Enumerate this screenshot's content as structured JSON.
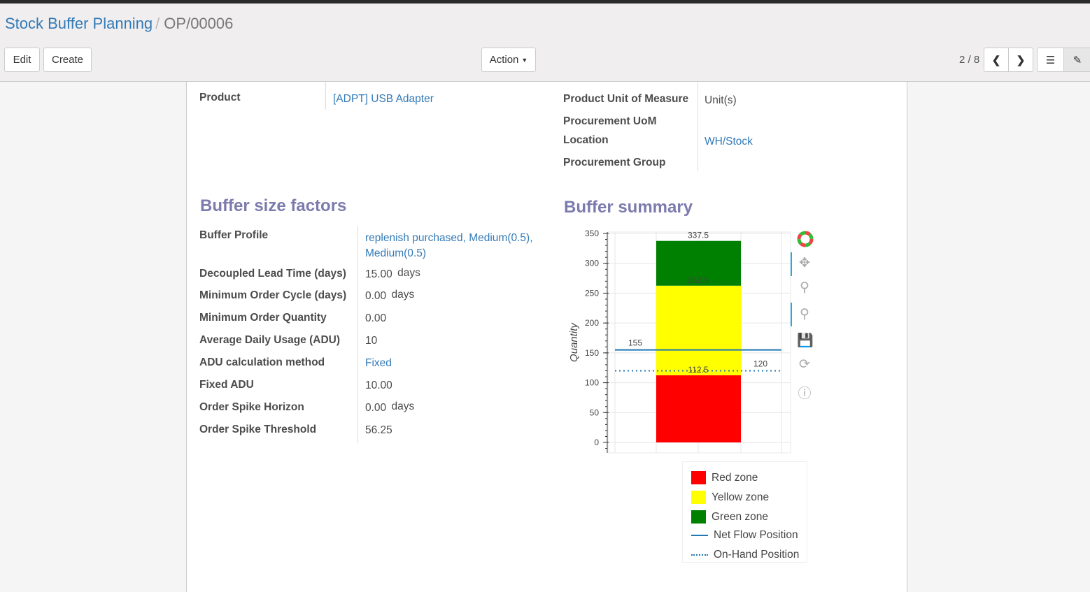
{
  "breadcrumb": {
    "parent": "Stock Buffer Planning",
    "current": "OP/00006"
  },
  "toolbar": {
    "edit": "Edit",
    "create": "Create",
    "action": "Action",
    "pager": "2 / 8"
  },
  "fields_top": {
    "product_label": "Product",
    "product_value": "[ADPT] USB Adapter",
    "uom_label": "Product Unit of Measure",
    "uom_value": "Unit(s)",
    "proc_uom_label": "Procurement UoM",
    "location_label": "Location",
    "location_value": "WH/Stock",
    "proc_group_label": "Procurement Group"
  },
  "factors": {
    "title": "Buffer size factors",
    "rows": [
      {
        "label": "Buffer Profile",
        "value": "replenish purchased, Medium(0.5), Medium(0.5)",
        "link": true
      },
      {
        "label": "Decoupled Lead Time (days)",
        "value": "15.00",
        "unit": "days"
      },
      {
        "label": "Minimum Order Cycle (days)",
        "value": "0.00",
        "unit": "days"
      },
      {
        "label": "Minimum Order Quantity",
        "value": "0.00"
      },
      {
        "label": "Average Daily Usage (ADU)",
        "value": "10"
      },
      {
        "label": "ADU calculation method",
        "value": "Fixed",
        "link": true
      },
      {
        "label": "Fixed ADU",
        "value": "10.00"
      },
      {
        "label": "Order Spike Horizon",
        "value": "0.00",
        "unit": "days"
      },
      {
        "label": "Order Spike Threshold",
        "value": "56.25"
      }
    ]
  },
  "summary": {
    "title": "Buffer summary"
  },
  "chart_data": {
    "type": "bar",
    "ylabel": "Quantity",
    "ylim": [
      -10,
      360
    ],
    "yticks": [
      0,
      50,
      100,
      150,
      200,
      250,
      300,
      350
    ],
    "grid": true,
    "stack": [
      {
        "name": "Red zone",
        "from": 0,
        "to": 112.5,
        "color": "#ff0000"
      },
      {
        "name": "Yellow zone",
        "from": 112.5,
        "to": 262.5,
        "color": "#ffff00"
      },
      {
        "name": "Green zone",
        "from": 262.5,
        "to": 337.5,
        "color": "#008000"
      }
    ],
    "labels": [
      "112.5",
      "262.5",
      "337.5"
    ],
    "lines": [
      {
        "name": "Net Flow Position",
        "value": 155,
        "style": "solid",
        "color": "#1f77b4",
        "label": "155"
      },
      {
        "name": "On-Hand Position",
        "value": 120,
        "style": "dotted",
        "color": "#1f77b4",
        "label": "120"
      }
    ],
    "legend": "bottom"
  }
}
